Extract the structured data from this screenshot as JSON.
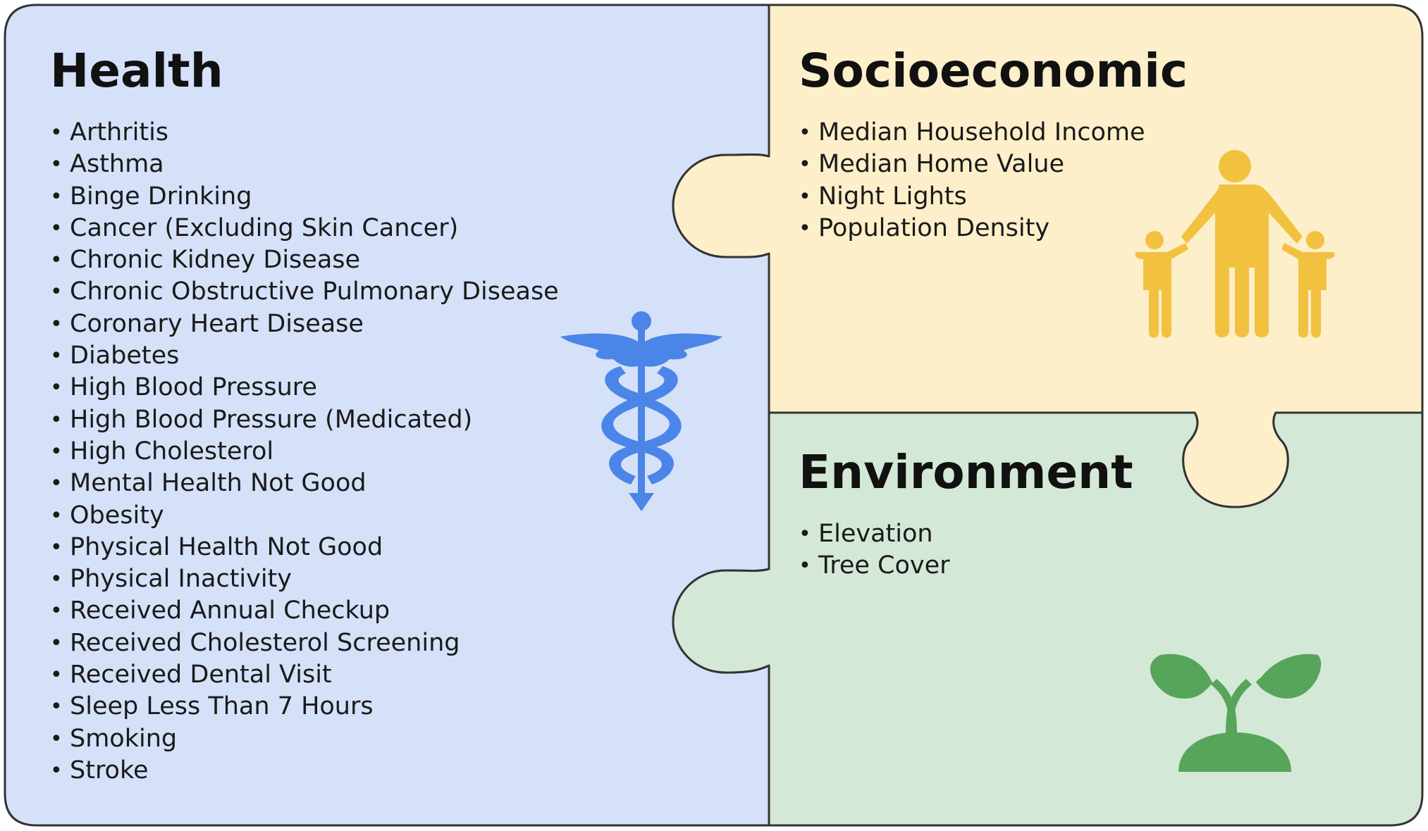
{
  "colors": {
    "health": "#d5e1f9",
    "socioeconomic": "#fcefc9",
    "environment": "#d4e8d7",
    "outline": "#333333",
    "caduceus": "#4b85e8",
    "family": "#f2c140",
    "plant": "#57a55b"
  },
  "health": {
    "title": "Health",
    "icon": "caduceus-icon",
    "items": [
      "Arthritis",
      "Asthma",
      "Binge Drinking",
      "Cancer (Excluding Skin Cancer)",
      "Chronic Kidney Disease",
      "Chronic Obstructive Pulmonary Disease",
      "Coronary Heart Disease",
      "Diabetes",
      "High Blood Pressure",
      "High Blood Pressure (Medicated)",
      "High Cholesterol",
      "Mental Health Not Good",
      "Obesity",
      "Physical Health Not Good",
      "Physical Inactivity",
      "Received Annual Checkup",
      "Received Cholesterol Screening",
      "Received Dental Visit",
      "Sleep Less Than 7 Hours",
      "Smoking",
      "Stroke"
    ]
  },
  "socioeconomic": {
    "title": "Socioeconomic",
    "icon": "family-icon",
    "items": [
      "Median Household Income",
      "Median Home Value",
      "Night Lights",
      "Population Density"
    ]
  },
  "environment": {
    "title": "Environment",
    "icon": "sprout-icon",
    "items": [
      "Elevation",
      "Tree Cover"
    ]
  }
}
